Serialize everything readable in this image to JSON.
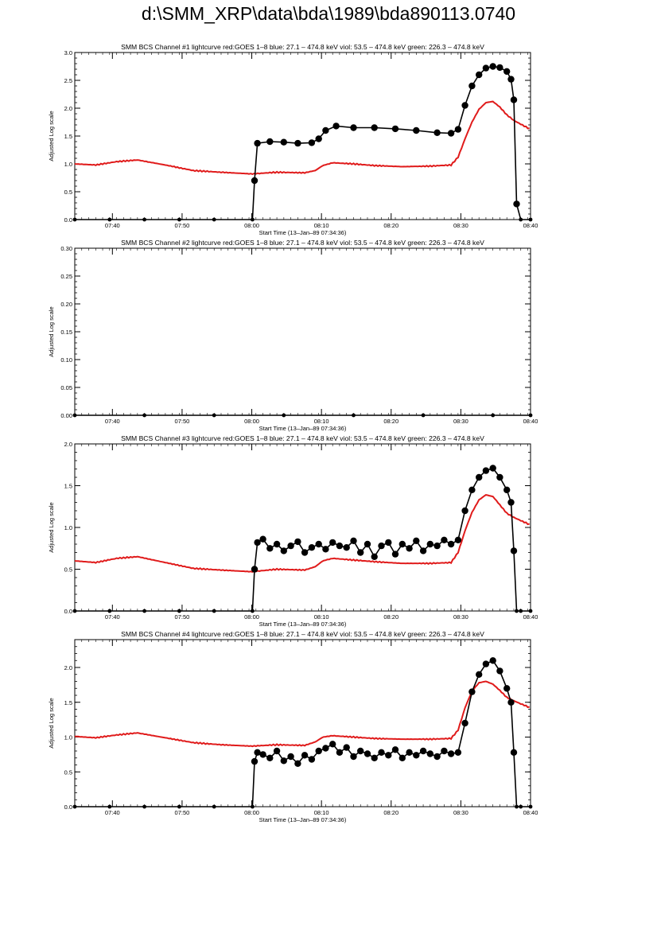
{
  "page": {
    "title": "d:\\SMM_XRP\\data\\bda\\1989\\bda890113.0740"
  },
  "colors": {
    "goes": "#e01b1b",
    "bcs": "#000000",
    "axis": "#000000",
    "background": "#ffffff"
  },
  "chart_data": [
    {
      "type": "scatter",
      "title": "SMM BCS Channel #1 lightcurve  red:GOES 1–8  blue: 27.1 – 474.8 keV  viol: 53.5 – 474.8 keV  green: 226.3 – 474.8 keV",
      "xlabel": "Start Time (13–Jan–89 07:34:36)",
      "ylabel": "Adjusted Log scale",
      "xlim": [
        0,
        65.4
      ],
      "ylim": [
        0,
        3.0
      ],
      "x_ticks": [
        5.4,
        15.4,
        25.4,
        35.4,
        45.4,
        55.4,
        65.4
      ],
      "x_tick_labels": [
        "07:40",
        "07:50",
        "08:00",
        "08:10",
        "08:20",
        "08:30",
        "08:40"
      ],
      "y_ticks": [
        0,
        0.5,
        1.0,
        1.5,
        2.0,
        2.5,
        3.0
      ],
      "y_tick_labels": [
        "0.0",
        "0.5",
        "1.0",
        "1.5",
        "2.0",
        "2.5",
        "3.0"
      ],
      "series": [
        {
          "role": "goes",
          "x": [
            0,
            3,
            6,
            9,
            13,
            17,
            21,
            25.4,
            29,
            33,
            34.5,
            35.6,
            37,
            40,
            43,
            47,
            51,
            54,
            55,
            56,
            57,
            58,
            59,
            60,
            61,
            62,
            63,
            65.4
          ],
          "y": [
            1.0,
            0.98,
            1.04,
            1.07,
            0.98,
            0.88,
            0.85,
            0.82,
            0.85,
            0.84,
            0.88,
            0.97,
            1.02,
            1.0,
            0.97,
            0.95,
            0.96,
            0.98,
            1.12,
            1.45,
            1.75,
            1.98,
            2.1,
            2.12,
            2.02,
            1.88,
            1.78,
            1.62
          ]
        },
        {
          "role": "bcs",
          "x": [
            0,
            5,
            10,
            15,
            20,
            25.5,
            25.8,
            26.2,
            28,
            30,
            32,
            34,
            35,
            36,
            37.5,
            40,
            43,
            46,
            49,
            52,
            54,
            55,
            56,
            57,
            58,
            59,
            60,
            61,
            62,
            62.6,
            63,
            63.4,
            64,
            65.4
          ],
          "y": [
            0,
            0,
            0,
            0,
            0,
            0,
            0.7,
            1.37,
            1.4,
            1.39,
            1.37,
            1.38,
            1.45,
            1.6,
            1.68,
            1.65,
            1.65,
            1.63,
            1.6,
            1.56,
            1.55,
            1.62,
            2.05,
            2.4,
            2.6,
            2.72,
            2.75,
            2.73,
            2.66,
            2.52,
            2.15,
            0.28,
            0,
            0
          ]
        }
      ]
    },
    {
      "type": "scatter",
      "title": "SMM BCS Channel #2 lightcurve  red:GOES 1–8  blue: 27.1 – 474.8 keV  viol: 53.5 – 474.8 keV  green: 226.3 – 474.8 keV",
      "xlabel": "Start Time (13–Jan–89 07:34:36)",
      "ylabel": "Adjusted Log scale",
      "xlim": [
        0,
        65.4
      ],
      "ylim": [
        0,
        0.3
      ],
      "x_ticks": [
        5.4,
        15.4,
        25.4,
        35.4,
        45.4,
        55.4,
        65.4
      ],
      "x_tick_labels": [
        "07:40",
        "07:50",
        "08:00",
        "08:10",
        "08:20",
        "08:30",
        "08:40"
      ],
      "y_ticks": [
        0,
        0.05,
        0.1,
        0.15,
        0.2,
        0.25,
        0.3
      ],
      "y_tick_labels": [
        "0.00",
        "0.05",
        "0.10",
        "0.15",
        "0.20",
        "0.25",
        "0.30"
      ],
      "series": [
        {
          "role": "bcs",
          "x": [
            0,
            10,
            20,
            30,
            40,
            50,
            60,
            65.4
          ],
          "y": [
            0,
            0,
            0,
            0,
            0,
            0,
            0,
            0
          ]
        }
      ]
    },
    {
      "type": "scatter",
      "title": "SMM BCS Channel #3 lightcurve  red:GOES 1–8  blue: 27.1 – 474.8 keV  viol: 53.5 – 474.8 keV  green: 226.3 – 474.8 keV",
      "xlabel": "Start Time (13–Jan–89 07:34:36)",
      "ylabel": "Adjusted Log scale",
      "xlim": [
        0,
        65.4
      ],
      "ylim": [
        0,
        2.0
      ],
      "x_ticks": [
        5.4,
        15.4,
        25.4,
        35.4,
        45.4,
        55.4,
        65.4
      ],
      "x_tick_labels": [
        "07:40",
        "07:50",
        "08:00",
        "08:10",
        "08:20",
        "08:30",
        "08:40"
      ],
      "y_ticks": [
        0,
        0.5,
        1.0,
        1.5,
        2.0
      ],
      "y_tick_labels": [
        "0.0",
        "0.5",
        "1.0",
        "1.5",
        "2.0"
      ],
      "series": [
        {
          "role": "goes",
          "x": [
            0,
            3,
            6,
            9,
            13,
            17,
            21,
            25.4,
            29,
            33,
            34.5,
            35.6,
            37,
            40,
            43,
            47,
            51,
            54,
            55,
            56,
            57,
            58,
            59,
            60,
            61,
            62,
            63,
            65.4
          ],
          "y": [
            0.6,
            0.58,
            0.63,
            0.65,
            0.58,
            0.51,
            0.49,
            0.47,
            0.5,
            0.49,
            0.53,
            0.6,
            0.63,
            0.61,
            0.59,
            0.57,
            0.57,
            0.58,
            0.7,
            0.96,
            1.18,
            1.33,
            1.39,
            1.37,
            1.27,
            1.17,
            1.12,
            1.03
          ]
        },
        {
          "role": "bcs",
          "x": [
            0,
            5,
            10,
            15,
            20,
            25.5,
            25.8,
            26.2,
            27,
            28,
            29,
            30,
            31,
            32,
            33,
            34,
            35,
            36,
            37,
            38,
            39,
            40,
            41,
            42,
            43,
            44,
            45,
            46,
            47,
            48,
            49,
            50,
            51,
            52,
            53,
            54,
            55,
            56,
            57,
            58,
            59,
            60,
            61,
            62,
            62.6,
            63,
            63.4,
            64,
            65.4
          ],
          "y": [
            0,
            0,
            0,
            0,
            0,
            0,
            0.5,
            0.82,
            0.86,
            0.75,
            0.8,
            0.72,
            0.78,
            0.83,
            0.7,
            0.76,
            0.8,
            0.74,
            0.82,
            0.78,
            0.76,
            0.84,
            0.7,
            0.8,
            0.65,
            0.78,
            0.82,
            0.68,
            0.8,
            0.75,
            0.84,
            0.72,
            0.8,
            0.78,
            0.85,
            0.8,
            0.85,
            1.2,
            1.45,
            1.6,
            1.68,
            1.71,
            1.6,
            1.45,
            1.3,
            0.72,
            0,
            0,
            0
          ]
        }
      ]
    },
    {
      "type": "scatter",
      "title": "SMM BCS Channel #4 lightcurve  red:GOES 1–8  blue: 27.1 – 474.8 keV  viol: 53.5 – 474.8 keV  green: 226.3 – 474.8 keV",
      "xlabel": "Start Time (13–Jan–89 07:34:36)",
      "ylabel": "Adjusted Log scale",
      "xlim": [
        0,
        65.4
      ],
      "ylim": [
        0,
        2.4
      ],
      "x_ticks": [
        5.4,
        15.4,
        25.4,
        35.4,
        45.4,
        55.4,
        65.4
      ],
      "x_tick_labels": [
        "07:40",
        "07:50",
        "08:00",
        "08:10",
        "08:20",
        "08:30",
        "08:40"
      ],
      "y_ticks": [
        0,
        0.5,
        1.0,
        1.5,
        2.0
      ],
      "y_tick_labels": [
        "0.0",
        "0.5",
        "1.0",
        "1.5",
        "2.0"
      ],
      "series": [
        {
          "role": "goes",
          "x": [
            0,
            3,
            6,
            9,
            13,
            17,
            21,
            25.4,
            29,
            33,
            34.5,
            35.6,
            37,
            40,
            43,
            47,
            51,
            54,
            55,
            56,
            57,
            58,
            59,
            60,
            61,
            62,
            63,
            65.4
          ],
          "y": [
            1.01,
            0.99,
            1.03,
            1.06,
            0.99,
            0.92,
            0.89,
            0.87,
            0.89,
            0.88,
            0.93,
            1.0,
            1.02,
            1.0,
            0.98,
            0.97,
            0.97,
            0.98,
            1.1,
            1.42,
            1.66,
            1.78,
            1.8,
            1.76,
            1.67,
            1.57,
            1.52,
            1.42
          ]
        },
        {
          "role": "bcs",
          "x": [
            0,
            5,
            10,
            15,
            20,
            25.5,
            25.8,
            26.2,
            27,
            28,
            29,
            30,
            31,
            32,
            33,
            34,
            35,
            36,
            37,
            38,
            39,
            40,
            41,
            42,
            43,
            44,
            45,
            46,
            47,
            48,
            49,
            50,
            51,
            52,
            53,
            54,
            55,
            56,
            57,
            58,
            59,
            60,
            61,
            62,
            62.6,
            63,
            63.4,
            64,
            65.4
          ],
          "y": [
            0,
            0,
            0,
            0,
            0,
            0,
            0.65,
            0.78,
            0.75,
            0.7,
            0.8,
            0.66,
            0.72,
            0.62,
            0.74,
            0.68,
            0.8,
            0.84,
            0.9,
            0.78,
            0.85,
            0.72,
            0.8,
            0.76,
            0.7,
            0.78,
            0.74,
            0.82,
            0.7,
            0.78,
            0.74,
            0.8,
            0.76,
            0.72,
            0.8,
            0.76,
            0.78,
            1.2,
            1.65,
            1.9,
            2.05,
            2.1,
            1.95,
            1.7,
            1.5,
            0.78,
            0,
            0,
            0
          ]
        }
      ]
    }
  ]
}
